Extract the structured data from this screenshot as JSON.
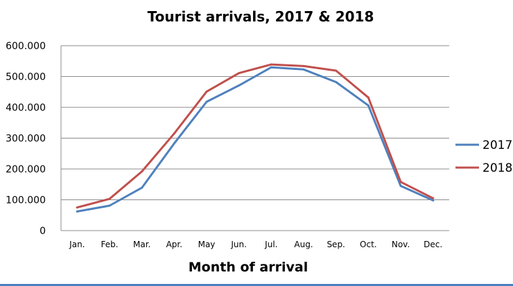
{
  "chart_data": {
    "type": "line",
    "title": "Tourist arrivals, 2017 & 2018",
    "xlabel": "Month of arrival",
    "ylabel": "",
    "categories": [
      "Jan.",
      "Feb.",
      "Mar.",
      "Apr.",
      "May",
      "Jun.",
      "Jul.",
      "Aug.",
      "Sep.",
      "Oct.",
      "Nov.",
      "Dec."
    ],
    "ylim": [
      0,
      600000
    ],
    "yticks": [
      0,
      100000,
      200000,
      300000,
      400000,
      500000,
      600000
    ],
    "ytick_labels": [
      "0",
      "100.000",
      "200.000",
      "300.000",
      "400.000",
      "500.000",
      "600.000"
    ],
    "grid": true,
    "legend_position": "right",
    "series": [
      {
        "name": "2017",
        "color": "#4f81bd",
        "values": [
          62000,
          81000,
          139000,
          283000,
          418000,
          471000,
          530000,
          523000,
          482000,
          406000,
          145000,
          98000
        ]
      },
      {
        "name": "2018",
        "color": "#c0504d",
        "values": [
          75000,
          103000,
          192000,
          315000,
          451000,
          511000,
          539000,
          534000,
          519000,
          432000,
          158000,
          105000
        ]
      }
    ]
  }
}
